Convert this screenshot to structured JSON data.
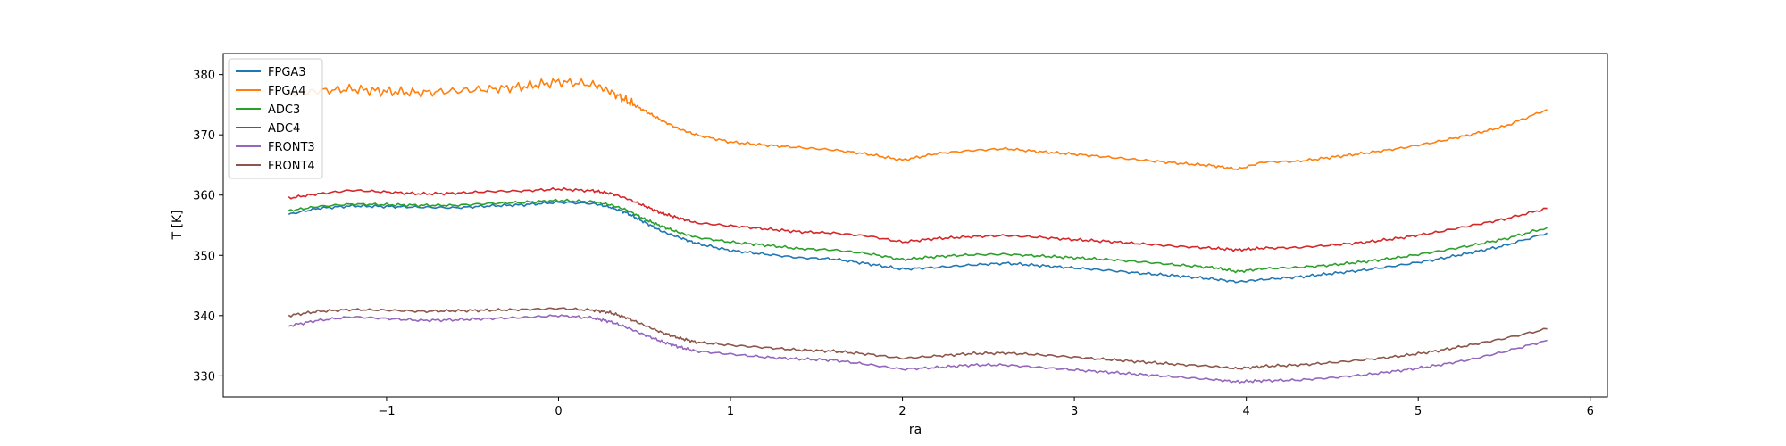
{
  "chart_data": {
    "type": "line",
    "title": "",
    "xlabel": "ra",
    "ylabel": "T [K]",
    "xlim": [
      -1.95,
      6.1
    ],
    "ylim": [
      326.5,
      383.5
    ],
    "xticks": [
      -1,
      0,
      1,
      2,
      3,
      4,
      5,
      6
    ],
    "xtick_labels": [
      "−1",
      "0",
      "1",
      "2",
      "3",
      "4",
      "5",
      "6"
    ],
    "yticks": [
      330,
      340,
      350,
      360,
      370,
      380
    ],
    "ytick_labels": [
      "330",
      "340",
      "350",
      "360",
      "370",
      "380"
    ],
    "grid": false,
    "legend": {
      "location": "upper-left"
    },
    "series": [
      {
        "name": "FPGA3",
        "color": "#1f77b4",
        "x": [
          -1.57,
          -1.4,
          -1.2,
          -1.0,
          -0.8,
          -0.6,
          -0.4,
          -0.2,
          0.0,
          0.2,
          0.3,
          0.4,
          0.5,
          0.6,
          0.7,
          0.8,
          1.0,
          1.2,
          1.4,
          1.6,
          1.8,
          2.0,
          2.2,
          2.4,
          2.6,
          2.8,
          3.0,
          3.2,
          3.4,
          3.6,
          3.8,
          3.95,
          4.1,
          4.3,
          4.5,
          4.7,
          4.9,
          5.1,
          5.3,
          5.5,
          5.75
        ],
        "values": [
          356.8,
          357.8,
          358.2,
          358.1,
          358.0,
          357.9,
          358.2,
          358.4,
          358.8,
          358.6,
          358.0,
          357.0,
          355.5,
          354.0,
          353.0,
          352.0,
          350.8,
          350.2,
          349.6,
          349.4,
          348.6,
          347.7,
          348.0,
          348.4,
          348.7,
          348.3,
          347.9,
          347.5,
          347.0,
          346.6,
          346.1,
          345.6,
          346.0,
          346.4,
          347.0,
          347.6,
          348.4,
          349.3,
          350.4,
          351.6,
          353.7
        ]
      },
      {
        "name": "FPGA4",
        "color": "#ff7f0e",
        "x": [
          -1.57,
          -1.4,
          -1.2,
          -1.0,
          -0.8,
          -0.6,
          -0.4,
          -0.2,
          0.0,
          0.2,
          0.3,
          0.4,
          0.5,
          0.6,
          0.7,
          0.8,
          1.0,
          1.2,
          1.4,
          1.6,
          1.8,
          2.0,
          2.2,
          2.4,
          2.6,
          2.8,
          3.0,
          3.2,
          3.4,
          3.6,
          3.8,
          3.95,
          4.1,
          4.3,
          4.5,
          4.7,
          4.9,
          5.1,
          5.3,
          5.5,
          5.75
        ],
        "values": [
          376.7,
          377.3,
          377.6,
          377.2,
          377.0,
          377.3,
          377.6,
          378.0,
          378.8,
          378.4,
          377.2,
          375.6,
          374.0,
          372.4,
          371.0,
          370.0,
          368.8,
          368.3,
          367.9,
          367.5,
          366.8,
          365.8,
          366.9,
          367.4,
          367.7,
          367.2,
          366.8,
          366.3,
          365.8,
          365.3,
          364.9,
          364.3,
          365.5,
          365.6,
          366.3,
          367.0,
          367.8,
          368.8,
          370.0,
          371.4,
          374.2
        ]
      },
      {
        "name": "ADC3",
        "color": "#2ca02c",
        "x": [
          -1.57,
          -1.4,
          -1.2,
          -1.0,
          -0.8,
          -0.6,
          -0.4,
          -0.2,
          0.0,
          0.2,
          0.3,
          0.4,
          0.5,
          0.6,
          0.7,
          0.8,
          1.0,
          1.2,
          1.4,
          1.6,
          1.8,
          2.0,
          2.2,
          2.4,
          2.6,
          2.8,
          3.0,
          3.2,
          3.4,
          3.6,
          3.8,
          3.95,
          4.1,
          4.3,
          4.5,
          4.7,
          4.9,
          5.1,
          5.3,
          5.5,
          5.75
        ],
        "values": [
          357.4,
          358.1,
          358.5,
          358.4,
          358.3,
          358.3,
          358.6,
          358.8,
          359.1,
          358.9,
          358.4,
          357.5,
          356.0,
          354.8,
          353.8,
          353.0,
          352.2,
          351.7,
          351.1,
          350.9,
          350.3,
          349.3,
          349.8,
          350.1,
          350.2,
          349.9,
          349.6,
          349.3,
          348.9,
          348.4,
          348.0,
          347.3,
          347.8,
          348.0,
          348.4,
          349.0,
          349.7,
          350.6,
          351.6,
          352.7,
          354.6
        ]
      },
      {
        "name": "ADC4",
        "color": "#d62728",
        "x": [
          -1.57,
          -1.4,
          -1.2,
          -1.0,
          -0.8,
          -0.6,
          -0.4,
          -0.2,
          0.0,
          0.2,
          0.3,
          0.4,
          0.5,
          0.6,
          0.7,
          0.8,
          1.0,
          1.2,
          1.4,
          1.6,
          1.8,
          2.0,
          2.2,
          2.4,
          2.6,
          2.8,
          3.0,
          3.2,
          3.4,
          3.6,
          3.8,
          3.95,
          4.1,
          4.3,
          4.5,
          4.7,
          4.9,
          5.1,
          5.3,
          5.5,
          5.75
        ],
        "values": [
          359.5,
          360.2,
          360.8,
          360.5,
          360.2,
          360.3,
          360.6,
          360.7,
          361.0,
          360.7,
          360.3,
          359.4,
          358.2,
          357.0,
          356.2,
          355.4,
          354.9,
          354.4,
          353.9,
          353.7,
          353.2,
          352.2,
          352.8,
          353.1,
          353.3,
          353.0,
          352.6,
          352.3,
          351.9,
          351.5,
          351.2,
          350.9,
          351.2,
          351.3,
          351.7,
          352.2,
          352.9,
          353.8,
          354.9,
          356.0,
          357.8
        ]
      },
      {
        "name": "FRONT3",
        "color": "#9467bd",
        "x": [
          -1.57,
          -1.4,
          -1.2,
          -1.0,
          -0.8,
          -0.6,
          -0.4,
          -0.2,
          0.0,
          0.2,
          0.3,
          0.4,
          0.5,
          0.6,
          0.7,
          0.8,
          1.0,
          1.2,
          1.4,
          1.6,
          1.8,
          2.0,
          2.2,
          2.4,
          2.6,
          2.8,
          3.0,
          3.2,
          3.4,
          3.6,
          3.8,
          3.95,
          4.1,
          4.3,
          4.5,
          4.7,
          4.9,
          5.1,
          5.3,
          5.5,
          5.75
        ],
        "values": [
          338.3,
          339.2,
          339.8,
          339.5,
          339.2,
          339.3,
          339.5,
          339.7,
          340.0,
          339.6,
          339.0,
          338.0,
          336.8,
          335.7,
          334.8,
          334.1,
          333.6,
          333.1,
          332.8,
          332.6,
          331.9,
          331.1,
          331.4,
          331.8,
          331.8,
          331.4,
          331.0,
          330.6,
          330.2,
          329.8,
          329.4,
          329.0,
          329.2,
          329.3,
          329.7,
          330.2,
          330.9,
          331.7,
          332.7,
          334.0,
          335.9
        ]
      },
      {
        "name": "FRONT4",
        "color": "#8c564b",
        "x": [
          -1.57,
          -1.4,
          -1.2,
          -1.0,
          -0.8,
          -0.6,
          -0.4,
          -0.2,
          0.0,
          0.2,
          0.3,
          0.4,
          0.5,
          0.6,
          0.7,
          0.8,
          1.0,
          1.2,
          1.4,
          1.6,
          1.8,
          2.0,
          2.2,
          2.4,
          2.6,
          2.8,
          3.0,
          3.2,
          3.4,
          3.6,
          3.8,
          3.95,
          4.1,
          4.3,
          4.5,
          4.7,
          4.9,
          5.1,
          5.3,
          5.5,
          5.75
        ],
        "values": [
          340.0,
          340.7,
          341.0,
          340.9,
          340.7,
          340.8,
          340.9,
          341.0,
          341.2,
          340.9,
          340.5,
          339.6,
          338.4,
          337.2,
          336.3,
          335.6,
          335.1,
          334.7,
          334.3,
          334.1,
          333.6,
          332.9,
          333.3,
          333.7,
          333.8,
          333.5,
          333.1,
          332.7,
          332.3,
          331.9,
          331.6,
          331.2,
          331.6,
          331.8,
          332.2,
          332.7,
          333.3,
          334.1,
          335.1,
          336.2,
          337.8
        ]
      }
    ]
  }
}
